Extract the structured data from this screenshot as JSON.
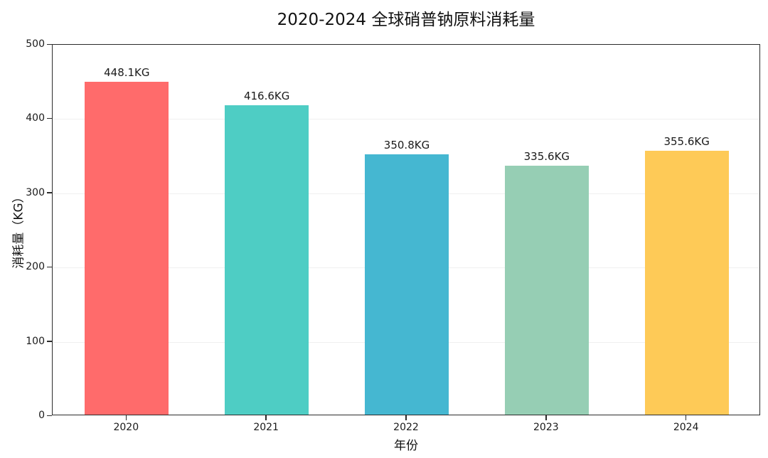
{
  "chart_data": {
    "type": "bar",
    "title": "2020-2024 全球硝普钠原料消耗量",
    "xlabel": "年份",
    "ylabel": "消耗量（KG）",
    "unit": "KG",
    "categories": [
      "2020",
      "2021",
      "2022",
      "2023",
      "2024"
    ],
    "values": [
      448.1,
      416.6,
      350.8,
      335.6,
      355.6
    ],
    "value_labels": [
      "448.1KG",
      "416.6KG",
      "350.8KG",
      "335.6KG",
      "355.6KG"
    ],
    "bar_colors": [
      "#FF6B6B",
      "#4ECDC4",
      "#45B7D1",
      "#96CEB4",
      "#FECA57"
    ],
    "ylim": [
      0,
      500
    ],
    "yticks": [
      0,
      100,
      200,
      300,
      400,
      500
    ],
    "grid": "horizontal",
    "legend": "none",
    "background_color": "#ffffff",
    "axis_color": "#2b2b2b"
  }
}
